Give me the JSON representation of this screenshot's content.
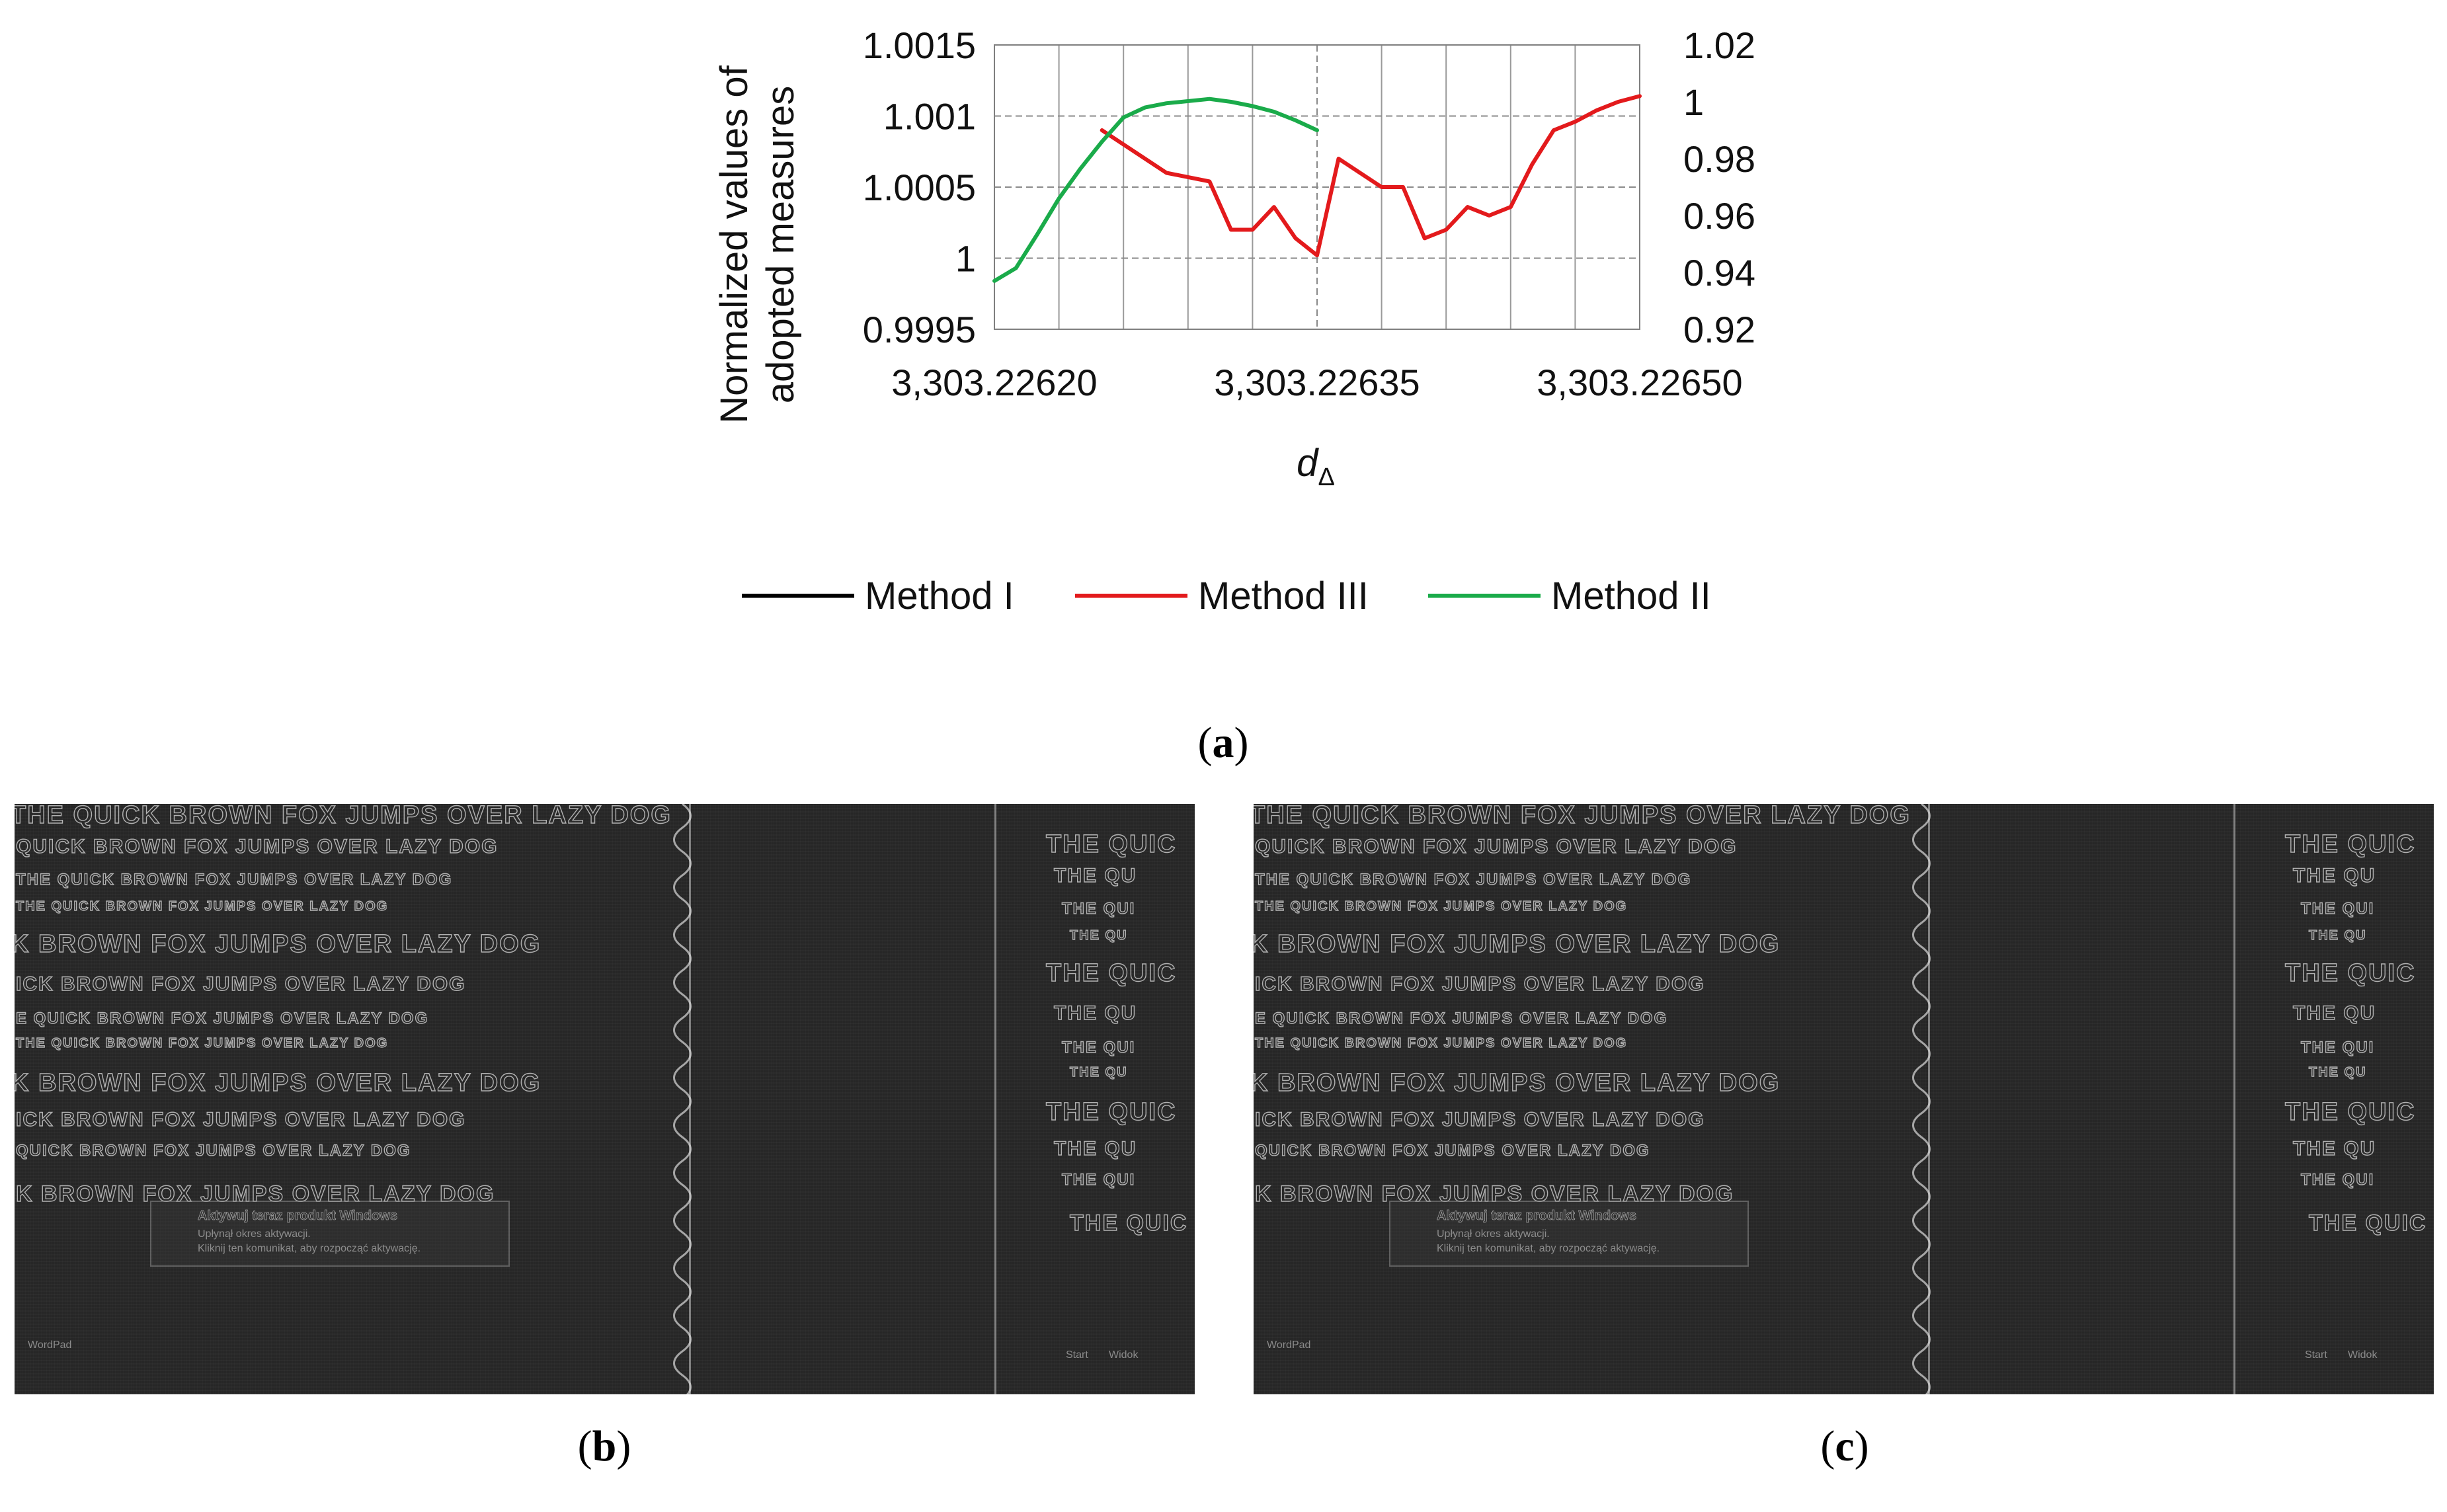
{
  "chart_data": {
    "type": "line",
    "ylabel": "Normalized values of adopted measures",
    "ylabel_lines": [
      "Normalized values of",
      "adopted measures"
    ],
    "xlabel": "d",
    "xlabel_sub": "Δ",
    "xlim": [
      3303.2262,
      3303.2265
    ],
    "x_ticks": [
      "3,303.22620",
      "3,303.22635",
      "3,303.22650"
    ],
    "x_tick_values": [
      3303.2262,
      3303.22635,
      3303.2265
    ],
    "left_axis": {
      "ylim": [
        0.9995,
        1.0015
      ],
      "ticks": [
        "0.9995",
        "1",
        "1.0005",
        "1.001",
        "1.0015"
      ],
      "tick_values": [
        0.9995,
        1.0,
        1.0005,
        1.001,
        1.0015
      ]
    },
    "right_axis": {
      "ylim": [
        0.92,
        1.02
      ],
      "ticks": [
        "0.92",
        "0.94",
        "0.96",
        "0.98",
        "1",
        "1.02"
      ],
      "tick_values": [
        0.92,
        0.94,
        0.96,
        0.98,
        1.0,
        1.02
      ]
    },
    "grid": true,
    "legend_position": "bottom",
    "series": [
      {
        "name": "Method I",
        "color": "#000000",
        "axis": "left",
        "x": [],
        "y": []
      },
      {
        "name": "Method III",
        "color": "#e31a1c",
        "axis": "right",
        "x": [
          3303.22625,
          3303.22628,
          3303.2263,
          3303.22631,
          3303.22632,
          3303.22633,
          3303.22634,
          3303.22635,
          3303.22636,
          3303.22638,
          3303.22639,
          3303.2264,
          3303.22641,
          3303.22642,
          3303.22643,
          3303.22644,
          3303.22645,
          3303.22646,
          3303.22647,
          3303.22648,
          3303.22649,
          3303.2265
        ],
        "y": [
          0.99,
          0.975,
          0.972,
          0.955,
          0.955,
          0.963,
          0.952,
          0.946,
          0.98,
          0.97,
          0.97,
          0.952,
          0.955,
          0.963,
          0.96,
          0.963,
          0.978,
          0.99,
          0.993,
          0.997,
          1.0,
          1.002
        ]
      },
      {
        "name": "Method II",
        "color": "#1aab4a",
        "axis": "left",
        "x": [
          3303.2262,
          3303.22621,
          3303.22622,
          3303.22623,
          3303.22624,
          3303.22625,
          3303.22626,
          3303.22627,
          3303.22628,
          3303.2263,
          3303.22631,
          3303.22632,
          3303.22633,
          3303.22634,
          3303.22635
        ],
        "y": [
          0.99984,
          0.99993,
          1.00017,
          1.00042,
          1.00063,
          1.00082,
          1.00099,
          1.00106,
          1.00109,
          1.00112,
          1.0011,
          1.00107,
          1.00103,
          1.00097,
          1.0009
        ]
      }
    ]
  },
  "captions": {
    "a": "a",
    "b": "b",
    "c": "c"
  },
  "panel_b": {
    "lines": [
      "THE QUICK BROWN FOX JUMPS OVER LAZY DOG",
      "QUICK BROWN FOX JUMPS OVER LAZY DOG",
      "THE QUICK BROWN FOX JUMPS OVER LAZY DOG",
      "THE QUICK BROWN FOX JUMPS OVER LAZY DOG",
      "K BROWN FOX JUMPS OVER LAZY DOG",
      "ICK BROWN FOX JUMPS OVER LAZY DOG",
      "E QUICK BROWN FOX JUMPS OVER LAZY DOG",
      "THE QUICK BROWN FOX JUMPS OVER LAZY DOG",
      "K BROWN FOX JUMPS OVER LAZY DOG",
      "ICK BROWN FOX JUMPS OVER LAZY DOG",
      "QUICK BROWN FOX JUMPS OVER LAZY DOG",
      "K BROWN FOX JUMPS OVER LAZY DOG"
    ],
    "right_lines": [
      "THE QUIC",
      "THE QU",
      "THE QUI",
      "THE QU",
      "THE QUIC",
      "THE QU",
      "THE QUI",
      "THE QU",
      "THE QUIC",
      "THE QU",
      "THE QUI",
      "THE QUIC"
    ],
    "dialog_title": "Aktywuj teraz produkt Windows",
    "dialog_line1": "Upłynął okres aktywacji.",
    "dialog_line2": "Kliknij ten komunikat, aby rozpocząć aktywację.",
    "taskbar_left": "WordPad",
    "taskbar_right": "Start",
    "taskbar_right2": "Widok"
  },
  "panel_c": {
    "lines": [
      "THE QUICK BROWN FOX JUMPS OVER LAZY DOG",
      "QUICK BROWN FOX JUMPS OVER LAZY DOG",
      "THE QUICK BROWN FOX JUMPS OVER LAZY DOG",
      "THE QUICK BROWN FOX JUMPS OVER LAZY DOG",
      "K BROWN FOX JUMPS OVER LAZY DOG",
      "ICK BROWN FOX JUMPS OVER LAZY DOG",
      "E QUICK BROWN FOX JUMPS OVER LAZY DOG",
      "THE QUICK BROWN FOX JUMPS OVER LAZY DOG",
      "K BROWN FOX JUMPS OVER LAZY DOG",
      "ICK BROWN FOX JUMPS OVER LAZY DOG",
      "QUICK BROWN FOX JUMPS OVER LAZY DOG",
      "K BROWN FOX JUMPS OVER LAZY DOG"
    ],
    "right_lines": [
      "THE QUIC",
      "THE QU",
      "THE QUI",
      "THE QU",
      "THE QUIC",
      "THE QU",
      "THE QUI",
      "THE QU",
      "THE QUIC",
      "THE QU",
      "THE QUI",
      "THE QUIC"
    ],
    "dialog_title": "Aktywuj teraz produkt Windows",
    "dialog_line1": "Upłynął okres aktywacji.",
    "dialog_line2": "Kliknij ten komunikat, aby rozpocząć aktywację.",
    "taskbar_left": "WordPad",
    "taskbar_right": "Start",
    "taskbar_right2": "Widok"
  }
}
